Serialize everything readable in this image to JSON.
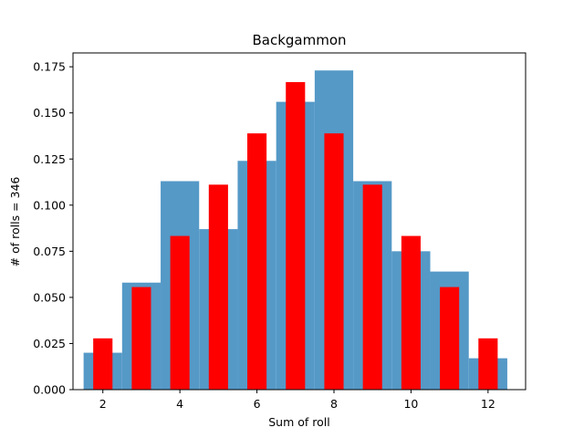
{
  "chart_data": {
    "type": "bar",
    "title": "Backgammon",
    "xlabel": "Sum of roll",
    "ylabel": "# of rolls = 346",
    "xlim": [
      1.225,
      12.975
    ],
    "ylim": [
      0,
      0.1825
    ],
    "xticks": [
      2,
      4,
      6,
      8,
      10,
      12
    ],
    "yticks": [
      0.0,
      0.025,
      0.05,
      0.075,
      0.1,
      0.125,
      0.15,
      0.175
    ],
    "ytick_labels": [
      "0.000",
      "0.025",
      "0.050",
      "0.075",
      "0.100",
      "0.125",
      "0.150",
      "0.175"
    ],
    "grid": false,
    "series": [
      {
        "kind": "histogram",
        "color": "#5599c7",
        "bins": [
          {
            "x0": 1.5,
            "x1": 2.5,
            "value": 0.02
          },
          {
            "x0": 2.5,
            "x1": 3.5,
            "value": 0.058
          },
          {
            "x0": 3.5,
            "x1": 4.5,
            "value": 0.113
          },
          {
            "x0": 4.5,
            "x1": 5.5,
            "value": 0.087
          },
          {
            "x0": 5.5,
            "x1": 6.5,
            "value": 0.124
          },
          {
            "x0": 6.5,
            "x1": 7.5,
            "value": 0.156
          },
          {
            "x0": 7.5,
            "x1": 8.5,
            "value": 0.173
          },
          {
            "x0": 8.5,
            "x1": 9.5,
            "value": 0.113
          },
          {
            "x0": 9.5,
            "x1": 10.5,
            "value": 0.075
          },
          {
            "x0": 10.5,
            "x1": 11.5,
            "value": 0.064
          },
          {
            "x0": 11.5,
            "x1": 12.5,
            "value": 0.017
          }
        ]
      },
      {
        "kind": "bar",
        "color": "#ff0000",
        "bar_width": 0.5,
        "x": [
          2,
          3,
          4,
          5,
          6,
          7,
          8,
          9,
          10,
          11,
          12
        ],
        "values": [
          0.0278,
          0.0556,
          0.0833,
          0.1111,
          0.1389,
          0.1667,
          0.1389,
          0.1111,
          0.0833,
          0.0556,
          0.0278
        ]
      }
    ]
  }
}
